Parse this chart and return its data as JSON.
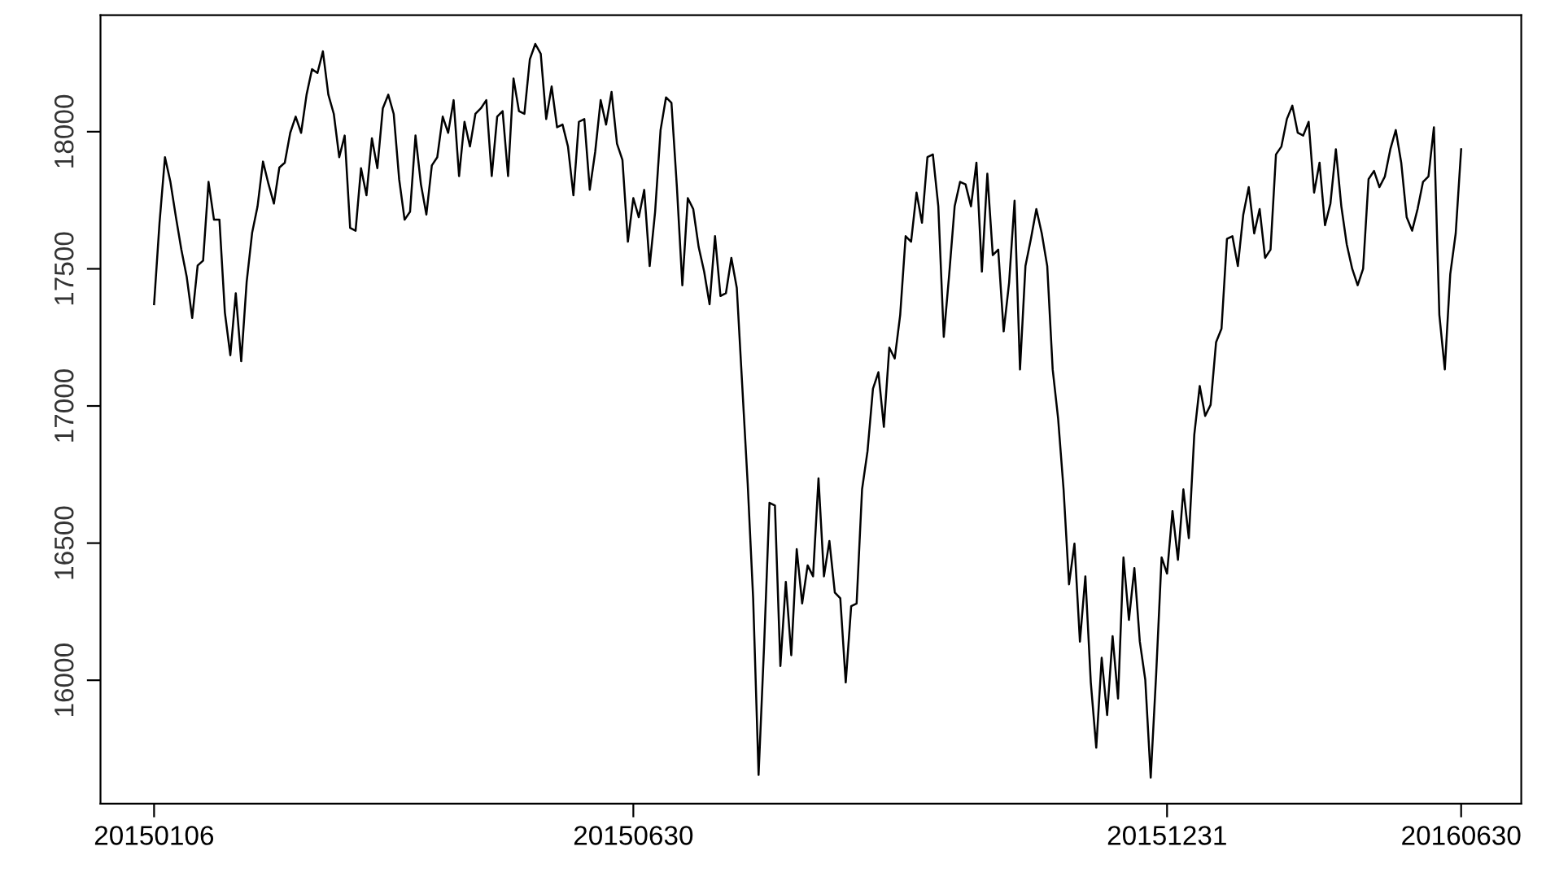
{
  "chart_data": {
    "type": "line",
    "categories": [
      "20150106",
      null,
      null,
      null,
      null,
      null,
      null,
      null,
      null,
      null,
      null,
      null,
      null,
      null,
      null,
      null,
      null,
      null,
      null,
      null,
      null,
      null,
      null,
      null,
      null,
      null,
      null,
      null,
      null,
      null,
      null,
      null,
      null,
      null,
      null,
      null,
      null,
      null,
      null,
      null,
      null,
      null,
      null,
      null,
      null,
      null,
      null,
      null,
      null,
      null,
      null,
      null,
      null,
      null,
      null,
      null,
      null,
      null,
      null,
      null,
      null,
      null,
      null,
      null,
      null,
      null,
      null,
      null,
      null,
      null,
      null,
      null,
      null,
      null,
      null,
      null,
      null,
      null,
      null,
      null,
      null,
      null,
      null,
      null,
      null,
      null,
      null,
      null,
      "20150630",
      null,
      null,
      null,
      null,
      null,
      null,
      null,
      null,
      null,
      null,
      null,
      null,
      null,
      null,
      null,
      null,
      null,
      null,
      null,
      null,
      null,
      null,
      null,
      null,
      null,
      null,
      null,
      null,
      null,
      null,
      null,
      null,
      null,
      null,
      null,
      null,
      null,
      null,
      null,
      null,
      null,
      null,
      null,
      null,
      null,
      null,
      null,
      null,
      null,
      null,
      null,
      null,
      null,
      null,
      null,
      null,
      null,
      null,
      null,
      null,
      null,
      null,
      null,
      null,
      null,
      null,
      null,
      null,
      null,
      null,
      null,
      null,
      null,
      null,
      null,
      null,
      null,
      null,
      null,
      null,
      null,
      null,
      null,
      null,
      null,
      null,
      null,
      null,
      null,
      null,
      null,
      null,
      null,
      null,
      null,
      null,
      null,
      "20151231",
      null,
      null,
      null,
      null,
      null,
      null,
      null,
      null,
      null,
      null,
      null,
      null,
      null,
      null,
      null,
      null,
      null,
      null,
      null,
      null,
      null,
      null,
      null,
      null,
      null,
      null,
      null,
      null,
      null,
      null,
      null,
      null,
      null,
      null,
      null,
      null,
      null,
      null,
      null,
      null,
      null,
      null,
      null,
      null,
      null,
      null,
      null,
      null,
      null,
      null,
      null,
      null,
      null,
      "20160630"
    ],
    "values": [
      17371,
      17668,
      17907,
      17817,
      17690,
      17571,
      17470,
      17321,
      17512,
      17530,
      17817,
      17679,
      17679,
      17341,
      17185,
      17411,
      17163,
      17452,
      17631,
      17728,
      17891,
      17810,
      17738,
      17869,
      17887,
      17996,
      18055,
      17996,
      18135,
      18228,
      18214,
      18293,
      18135,
      18065,
      17907,
      17986,
      17649,
      17639,
      17867,
      17768,
      17976,
      17867,
      18085,
      18135,
      18065,
      17827,
      17679,
      17708,
      17986,
      17808,
      17698,
      17877,
      17907,
      18055,
      17996,
      18115,
      17838,
      18036,
      17946,
      18065,
      18085,
      18115,
      17838,
      18055,
      18075,
      17838,
      18194,
      18075,
      18065,
      18264,
      18320,
      18284,
      18046,
      18165,
      18016,
      18026,
      17946,
      17768,
      18036,
      18046,
      17788,
      17927,
      18115,
      18026,
      18145,
      17956,
      17897,
      17599,
      17758,
      17688,
      17788,
      17510,
      17708,
      18006,
      18125,
      18105,
      17798,
      17440,
      17758,
      17718,
      17579,
      17490,
      17371,
      17619,
      17401,
      17411,
      17540,
      17430,
      17073,
      16716,
      16299,
      15655,
      16121,
      16647,
      16637,
      16052,
      16359,
      16091,
      16478,
      16280,
      16419,
      16379,
      16736,
      16379,
      16508,
      16320,
      16299,
      15992,
      16270,
      16280,
      16696,
      16835,
      17063,
      17123,
      16924,
      17213,
      17173,
      17332,
      17619,
      17599,
      17778,
      17668,
      17907,
      17917,
      17728,
      17252,
      17480,
      17728,
      17817,
      17808,
      17728,
      17887,
      17490,
      17847,
      17550,
      17570,
      17272,
      17450,
      17748,
      17133,
      17510,
      17609,
      17718,
      17629,
      17510,
      17133,
      16954,
      16696,
      16350,
      16498,
      16141,
      16379,
      15992,
      15754,
      16082,
      15873,
      16161,
      15933,
      16448,
      16220,
      16409,
      16141,
      16002,
      15645,
      16022,
      16448,
      16389,
      16617,
      16439,
      16696,
      16518,
      16895,
      17073,
      16964,
      17004,
      17232,
      17282,
      17609,
      17619,
      17510,
      17698,
      17798,
      17629,
      17718,
      17540,
      17570,
      17917,
      17946,
      18046,
      18095,
      17996,
      17986,
      18036,
      17778,
      17887,
      17659,
      17738,
      17936,
      17728,
      17589,
      17500,
      17440,
      17500,
      17827,
      17857,
      17798,
      17837,
      17936,
      18006,
      17887,
      17688,
      17639,
      17718,
      17817,
      17837,
      18016,
      17332,
      17133,
      17480,
      17629,
      17936
    ],
    "color": "#000000",
    "ylim": [
      15550,
      18425
    ],
    "yticks": [
      16000,
      16500,
      17000,
      17500,
      18000
    ],
    "grid": false,
    "legend": false,
    "line_style": "solid",
    "marker": "none"
  }
}
